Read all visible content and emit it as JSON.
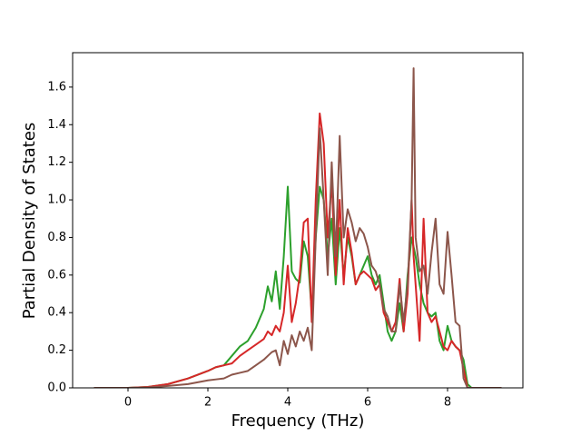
{
  "chart_data": {
    "type": "line",
    "xlabel": "Frequency (THz)",
    "ylabel": "Partial Density of States",
    "x": [
      -0.85,
      0,
      0.5,
      1,
      1.5,
      2,
      2.2,
      2.4,
      2.6,
      2.8,
      3.0,
      3.2,
      3.4,
      3.5,
      3.6,
      3.7,
      3.8,
      3.9,
      4.0,
      4.1,
      4.2,
      4.3,
      4.4,
      4.5,
      4.6,
      4.7,
      4.8,
      4.9,
      5.0,
      5.1,
      5.2,
      5.3,
      5.4,
      5.5,
      5.6,
      5.7,
      5.8,
      5.9,
      6.0,
      6.1,
      6.2,
      6.3,
      6.4,
      6.5,
      6.6,
      6.7,
      6.8,
      6.9,
      7.0,
      7.1,
      7.15,
      7.2,
      7.3,
      7.4,
      7.5,
      7.6,
      7.7,
      7.8,
      7.9,
      8.0,
      8.1,
      8.2,
      8.3,
      8.4,
      8.5,
      8.6,
      9.35
    ],
    "series": [
      {
        "color": "#2ca02c",
        "values": [
          0,
          0,
          0.005,
          0.02,
          0.05,
          0.09,
          0.11,
          0.12,
          0.17,
          0.22,
          0.25,
          0.32,
          0.42,
          0.54,
          0.46,
          0.62,
          0.42,
          0.7,
          1.07,
          0.62,
          0.58,
          0.56,
          0.78,
          0.7,
          0.4,
          0.8,
          1.07,
          1.0,
          0.7,
          0.9,
          0.55,
          0.85,
          0.6,
          0.8,
          0.7,
          0.55,
          0.6,
          0.65,
          0.7,
          0.6,
          0.55,
          0.6,
          0.45,
          0.3,
          0.25,
          0.3,
          0.45,
          0.3,
          0.6,
          0.8,
          0.75,
          0.7,
          0.55,
          0.45,
          0.4,
          0.38,
          0.4,
          0.25,
          0.2,
          0.33,
          0.25,
          0.22,
          0.2,
          0.15,
          0.02,
          0,
          0
        ]
      },
      {
        "color": "#d62728",
        "values": [
          0,
          0,
          0.005,
          0.02,
          0.05,
          0.09,
          0.11,
          0.12,
          0.13,
          0.17,
          0.2,
          0.23,
          0.26,
          0.3,
          0.28,
          0.33,
          0.3,
          0.4,
          0.65,
          0.35,
          0.45,
          0.6,
          0.88,
          0.9,
          0.35,
          1.0,
          1.46,
          1.3,
          0.8,
          1.1,
          0.6,
          1.0,
          0.55,
          0.85,
          0.72,
          0.55,
          0.6,
          0.62,
          0.6,
          0.58,
          0.52,
          0.55,
          0.4,
          0.35,
          0.3,
          0.35,
          0.58,
          0.3,
          0.5,
          1.0,
          0.7,
          0.55,
          0.25,
          0.9,
          0.4,
          0.35,
          0.38,
          0.3,
          0.22,
          0.2,
          0.25,
          0.22,
          0.2,
          0.1,
          0,
          0,
          0
        ]
      },
      {
        "color": "#8c564b",
        "values": [
          0,
          0,
          0.002,
          0.01,
          0.02,
          0.04,
          0.045,
          0.05,
          0.07,
          0.08,
          0.09,
          0.12,
          0.15,
          0.17,
          0.19,
          0.2,
          0.12,
          0.25,
          0.18,
          0.28,
          0.22,
          0.3,
          0.25,
          0.32,
          0.2,
          0.8,
          1.38,
          1.0,
          0.6,
          1.2,
          0.7,
          1.34,
          0.8,
          0.95,
          0.88,
          0.78,
          0.85,
          0.82,
          0.75,
          0.65,
          0.62,
          0.55,
          0.42,
          0.38,
          0.3,
          0.3,
          0.55,
          0.35,
          0.55,
          1.0,
          1.7,
          0.8,
          0.62,
          0.65,
          0.5,
          0.72,
          0.9,
          0.55,
          0.5,
          0.83,
          0.6,
          0.35,
          0.33,
          0.05,
          0,
          0,
          0
        ]
      }
    ],
    "xlim": [
      -1.386,
      9.886
    ],
    "ylim": [
      0,
      1.783
    ],
    "xticks": [
      0,
      2,
      4,
      6,
      8
    ],
    "yticks": [
      {
        "value": 0,
        "label": "0.0"
      },
      0.2,
      0.4,
      0.6,
      0.8,
      {
        "value": 1,
        "label": "1.0"
      },
      1.2,
      1.4,
      1.6
    ]
  }
}
